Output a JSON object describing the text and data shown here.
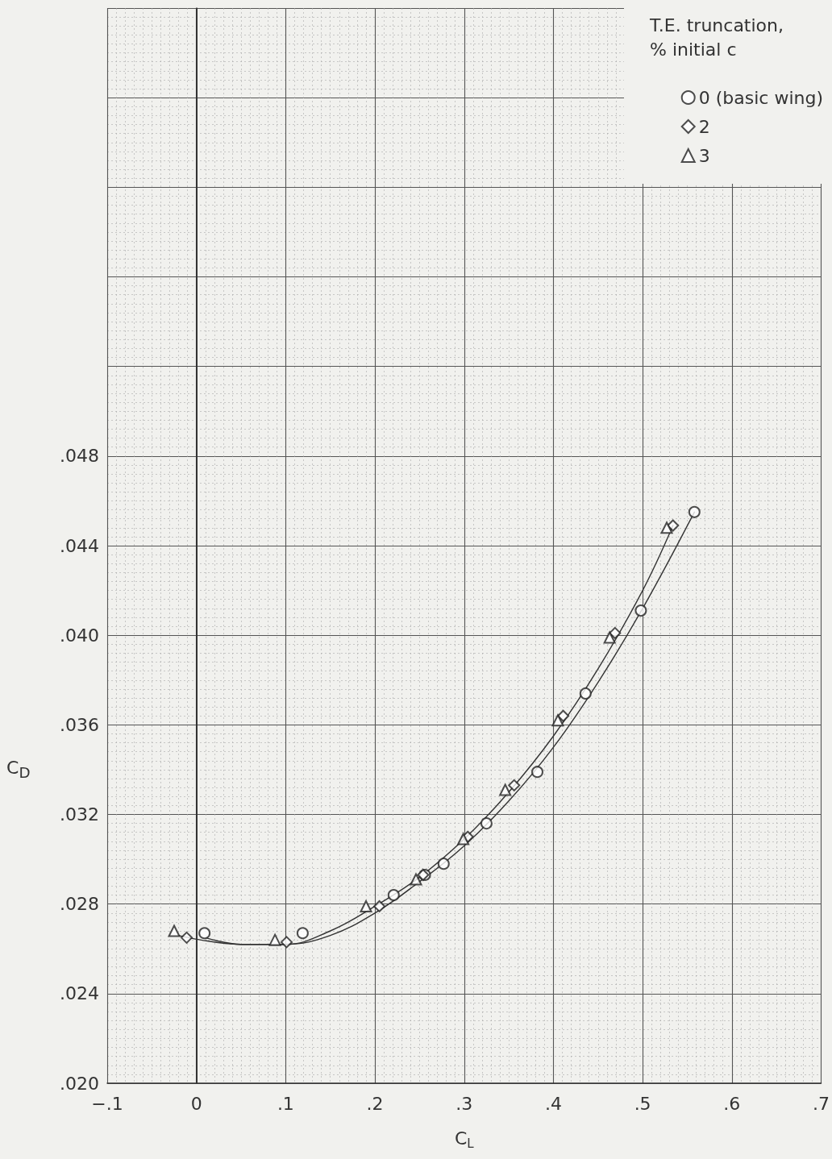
{
  "chart_data": {
    "type": "scatter",
    "xlabel": "C$_{L}$",
    "ylabel": "C$_{D}$",
    "legend_title": "T.E. truncation,\n% initial c",
    "series": [
      {
        "name": "0 (basic wing)",
        "color": "#222222",
        "marker": "circle",
        "x": [
          0.009,
          0.119,
          0.221,
          0.256,
          0.277,
          0.325,
          0.382,
          0.436,
          0.498,
          0.558
        ],
        "values": [
          0.0267,
          0.0267,
          0.0284,
          0.0293,
          0.0298,
          0.0316,
          0.0339,
          0.0374,
          0.0411,
          0.0455
        ]
      },
      {
        "name": "2",
        "color": "#222222",
        "marker": "diamond",
        "x": [
          -0.011,
          0.101,
          0.205,
          0.254,
          0.304,
          0.356,
          0.411,
          0.469,
          0.534
        ],
        "values": [
          0.0265,
          0.0263,
          0.0279,
          0.0293,
          0.031,
          0.0333,
          0.0364,
          0.0401,
          0.0449
        ]
      },
      {
        "name": "3",
        "color": "#222222",
        "marker": "triangle",
        "x": [
          -0.025,
          0.088,
          0.19,
          0.246,
          0.299,
          0.346,
          0.405,
          0.463,
          0.527
        ],
        "values": [
          0.0268,
          0.0264,
          0.0279,
          0.0291,
          0.0309,
          0.0331,
          0.0362,
          0.0399,
          0.0448
        ]
      },
      {
        "type": "line",
        "color": "#333333",
        "marker": "none",
        "line_style": "solid",
        "x": [
          0.01,
          0.05,
          0.1,
          0.15,
          0.2,
          0.25,
          0.3,
          0.35,
          0.4,
          0.45,
          0.5,
          0.558
        ],
        "values": [
          0.0265,
          0.0262,
          0.0262,
          0.0266,
          0.0276,
          0.029,
          0.0306,
          0.0326,
          0.035,
          0.0379,
          0.0412,
          0.0455
        ]
      },
      {
        "type": "line",
        "color": "#333333",
        "marker": "none",
        "line_style": "solid",
        "x": [
          -0.02,
          0.05,
          0.1,
          0.15,
          0.2,
          0.25,
          0.3,
          0.35,
          0.4,
          0.45,
          0.5,
          0.534
        ],
        "values": [
          0.0266,
          0.0262,
          0.0262,
          0.0268,
          0.0279,
          0.0292,
          0.0309,
          0.033,
          0.0355,
          0.0385,
          0.042,
          0.0449
        ]
      }
    ],
    "xlim": [
      -0.1,
      0.7
    ],
    "xticks": [
      {
        "value": -0.1,
        "label": "−.1"
      },
      {
        "value": 0,
        "label": "0"
      },
      {
        "value": 0.1,
        "label": ".1"
      },
      {
        "value": 0.2,
        "label": ".2"
      },
      {
        "value": 0.3,
        "label": ".3"
      },
      {
        "value": 0.4,
        "label": ".4"
      },
      {
        "value": 0.5,
        "label": ".5"
      },
      {
        "value": 0.6,
        "label": ".6"
      },
      {
        "value": 0.7,
        "label": ".7"
      }
    ],
    "ylim": [
      0.02,
      0.068
    ],
    "yticks": [
      {
        "value": 0.02,
        "label": ".020"
      },
      {
        "value": 0.024,
        "label": ".024"
      },
      {
        "value": 0.028,
        "label": ".028"
      },
      {
        "value": 0.032,
        "label": ".032"
      },
      {
        "value": 0.036,
        "label": ".036"
      },
      {
        "value": 0.04,
        "label": ".040"
      },
      {
        "value": 0.044,
        "label": ".044"
      },
      {
        "value": 0.048,
        "label": ".048"
      },
      {
        "value": 0.052,
        "label": null
      },
      {
        "value": 0.056,
        "label": null
      },
      {
        "value": 0.06,
        "label": null
      },
      {
        "value": 0.064,
        "label": null
      },
      {
        "value": 0.068,
        "label": null
      }
    ],
    "ref_lines": [
      {
        "axis": "x",
        "value": 0,
        "color": "#333333",
        "line_style": "solid"
      }
    ],
    "grid": true,
    "legend": "top right"
  }
}
